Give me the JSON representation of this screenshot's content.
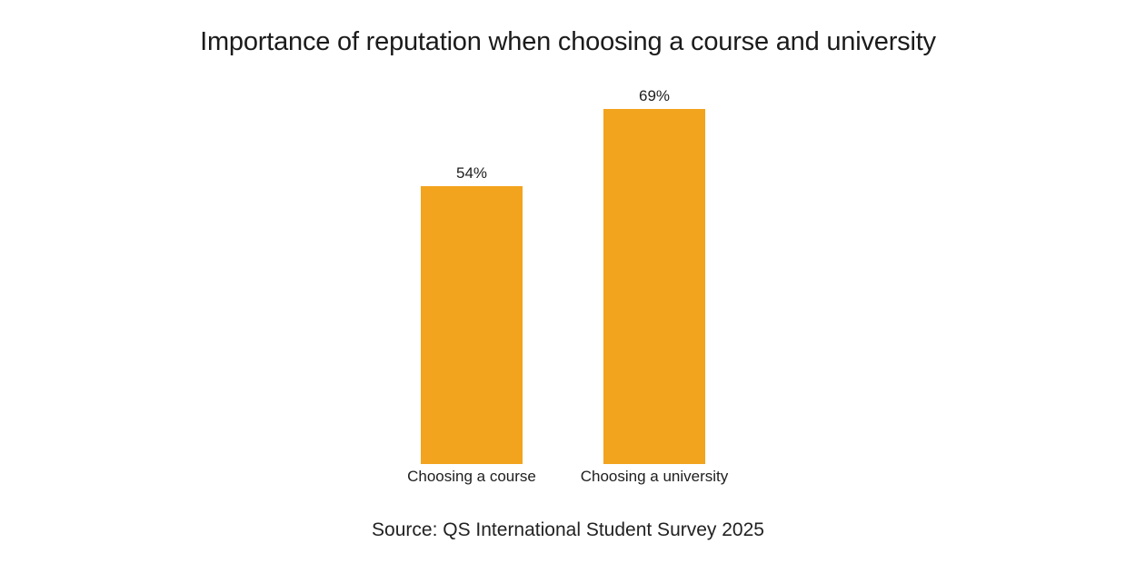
{
  "chart_data": {
    "type": "bar",
    "title": "Importance of reputation when choosing a course and university",
    "categories": [
      "Choosing a course",
      "Choosing a university"
    ],
    "values": [
      54,
      69
    ],
    "value_labels": [
      "54%",
      "69%"
    ],
    "unit": "%",
    "xlabel": "",
    "ylabel": "",
    "ylim": [
      0,
      69
    ],
    "grid": false,
    "legend": "none",
    "bar_color": "#F2A41E",
    "source": "Source: QS International Student Survey 2025"
  }
}
